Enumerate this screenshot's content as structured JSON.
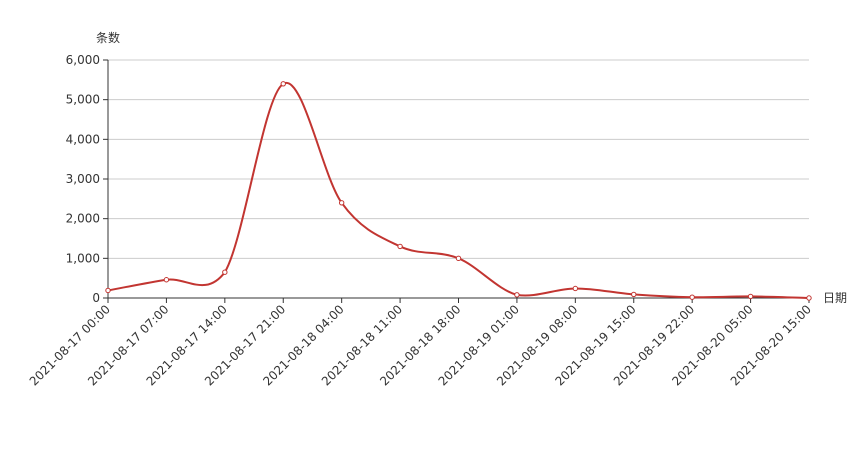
{
  "chart_data": {
    "type": "line",
    "title": "",
    "xlabel": "日期",
    "ylabel": "条数",
    "categories": [
      "2021-08-17 00:00",
      "2021-08-17 07:00",
      "2021-08-17 14:00",
      "2021-08-17 21:00",
      "2021-08-18 04:00",
      "2021-08-18 11:00",
      "2021-08-18 18:00",
      "2021-08-19 01:00",
      "2021-08-19 08:00",
      "2021-08-19 15:00",
      "2021-08-19 22:00",
      "2021-08-20 05:00",
      "2021-08-20 15:00"
    ],
    "series": [
      {
        "values": [
          190,
          460,
          650,
          5400,
          2400,
          1300,
          1000,
          80,
          240,
          90,
          20,
          40,
          0
        ],
        "color": "#c23531"
      }
    ],
    "ylim": [
      0,
      6000
    ],
    "yticks": [
      0,
      1000,
      2000,
      3000,
      4000,
      5000,
      6000
    ],
    "ytick_labels": [
      "0",
      "1,000",
      "2,000",
      "3,000",
      "4,000",
      "5,000",
      "6,000"
    ],
    "grid": true,
    "smooth": true
  }
}
